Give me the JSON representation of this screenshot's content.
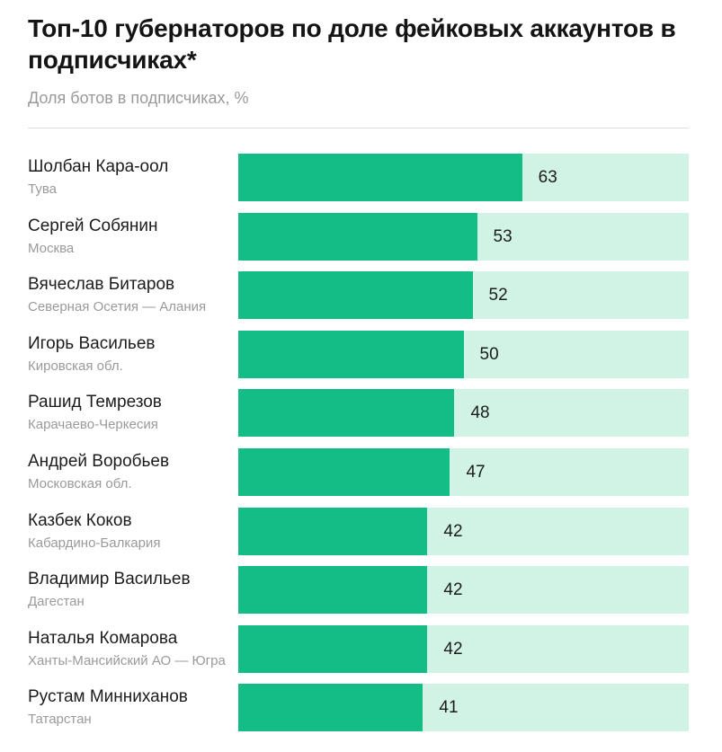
{
  "title": "Топ-10 губернаторов по доле фейковых аккаунтов в подписчиках*",
  "subtitle": "Доля ботов в подписчиках, %",
  "colors": {
    "bar": "#14bd86",
    "track": "#d1f3e6"
  },
  "chart_data": {
    "type": "bar",
    "orientation": "horizontal",
    "title": "Топ-10 губернаторов по доле фейковых аккаунтов в подписчиках*",
    "subtitle": "Доля ботов в подписчиках, %",
    "xlim": [
      0,
      100
    ],
    "grid": false,
    "rows": [
      {
        "name": "Шолбан Кара-оол",
        "region": "Тува",
        "value": 63
      },
      {
        "name": "Сергей Собянин",
        "region": "Москва",
        "value": 53
      },
      {
        "name": "Вячеслав Битаров",
        "region": "Северная Осетия — Алания",
        "value": 52
      },
      {
        "name": "Игорь Васильев",
        "region": "Кировская обл.",
        "value": 50
      },
      {
        "name": "Рашид Темрезов",
        "region": "Карачаево-Черкесия",
        "value": 48
      },
      {
        "name": "Андрей Воробьев",
        "region": "Московская обл.",
        "value": 47
      },
      {
        "name": "Казбек Коков",
        "region": "Кабардино-Балкария",
        "value": 42
      },
      {
        "name": "Владимир Васильев",
        "region": "Дагестан",
        "value": 42
      },
      {
        "name": "Наталья Комарова",
        "region": "Ханты-Мансийский АО — Югра",
        "value": 42
      },
      {
        "name": "Рустам Минниханов",
        "region": "Татарстан",
        "value": 41
      }
    ]
  }
}
